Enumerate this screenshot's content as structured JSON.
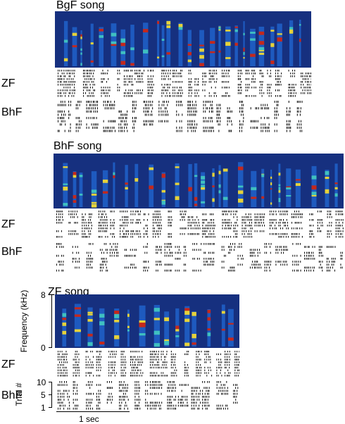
{
  "panels": [
    {
      "id": "bgf",
      "title": "BgF song",
      "rows": [
        {
          "label": "ZF",
          "trials": 10,
          "density": 0.6
        },
        {
          "label": "BhF",
          "trials": 10,
          "density": 0.55
        }
      ]
    },
    {
      "id": "bhf",
      "title": "BhF song",
      "rows": [
        {
          "label": "ZF",
          "trials": 10,
          "density": 0.55
        },
        {
          "label": "BhF",
          "trials": 10,
          "density": 0.35
        }
      ]
    },
    {
      "id": "zf",
      "title": "ZF song",
      "rows": [
        {
          "label": "ZF",
          "trials": 10,
          "density": 0.75
        },
        {
          "label": "BhF",
          "trials": 10,
          "density": 0.55
        }
      ]
    }
  ],
  "axes": {
    "frequency_label": "Frequency (kHz)",
    "frequency_ticks": [
      "8",
      "0"
    ],
    "trial_label": "Trial #",
    "trial_ticks": [
      "10",
      "5",
      "1"
    ],
    "time_scale_label": "1 sec"
  },
  "colors": {
    "spec_background": "#16307f",
    "spec_low": "#1f5fc7",
    "spec_mid": "#3fc0c0",
    "spec_high": "#e6d23a",
    "spec_peak": "#c4281c",
    "raster": "#000000"
  }
}
